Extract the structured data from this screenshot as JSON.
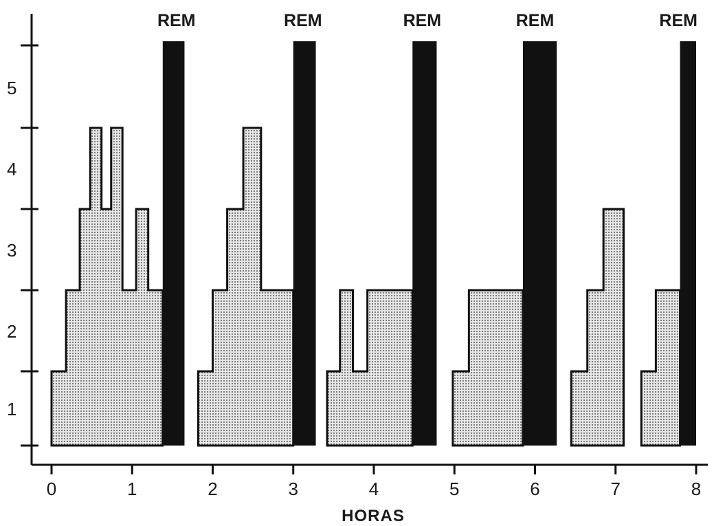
{
  "chart_data": {
    "type": "area",
    "title": "",
    "xlabel": "HORAS",
    "ylabel": "",
    "xlim": [
      0,
      8
    ],
    "ylim": [
      0,
      5
    ],
    "x_ticks": [
      0,
      1,
      2,
      3,
      4,
      5,
      6,
      7,
      8
    ],
    "y_ticks": [
      1,
      2,
      3,
      4,
      5
    ],
    "x_tick_labels": [
      "0",
      "1",
      "2",
      "3",
      "4",
      "5",
      "6",
      "7",
      "8"
    ],
    "y_tick_labels": [
      "1",
      "2",
      "3",
      "4",
      "5"
    ],
    "grid": false,
    "rem_label": "REM",
    "rem_level": 5,
    "cycles": [
      {
        "stages": [
          {
            "x0": 0.0,
            "x1": 0.18,
            "level": 1
          },
          {
            "x0": 0.18,
            "x1": 0.35,
            "level": 2
          },
          {
            "x0": 0.35,
            "x1": 0.48,
            "level": 3
          },
          {
            "x0": 0.48,
            "x1": 0.62,
            "level": 4
          },
          {
            "x0": 0.62,
            "x1": 0.74,
            "level": 3
          },
          {
            "x0": 0.74,
            "x1": 0.88,
            "level": 4
          },
          {
            "x0": 0.88,
            "x1": 1.05,
            "level": 2
          },
          {
            "x0": 1.05,
            "x1": 1.2,
            "level": 3
          },
          {
            "x0": 1.2,
            "x1": 1.38,
            "level": 2
          }
        ],
        "rem": {
          "x0": 1.38,
          "x1": 1.65
        }
      },
      {
        "stages": [
          {
            "x0": 1.82,
            "x1": 2.0,
            "level": 1
          },
          {
            "x0": 2.0,
            "x1": 2.18,
            "level": 2
          },
          {
            "x0": 2.18,
            "x1": 2.38,
            "level": 3
          },
          {
            "x0": 2.38,
            "x1": 2.6,
            "level": 4
          },
          {
            "x0": 2.6,
            "x1": 3.0,
            "level": 2
          }
        ],
        "rem": {
          "x0": 3.0,
          "x1": 3.28
        }
      },
      {
        "stages": [
          {
            "x0": 3.42,
            "x1": 3.58,
            "level": 1
          },
          {
            "x0": 3.58,
            "x1": 3.74,
            "level": 2
          },
          {
            "x0": 3.74,
            "x1": 3.92,
            "level": 1
          },
          {
            "x0": 3.92,
            "x1": 4.48,
            "level": 2
          }
        ],
        "rem": {
          "x0": 4.48,
          "x1": 4.78
        }
      },
      {
        "stages": [
          {
            "x0": 4.98,
            "x1": 5.18,
            "level": 1
          },
          {
            "x0": 5.18,
            "x1": 5.85,
            "level": 2
          }
        ],
        "rem": {
          "x0": 5.85,
          "x1": 6.27
        }
      },
      {
        "stages": [
          {
            "x0": 6.45,
            "x1": 6.65,
            "level": 1
          },
          {
            "x0": 6.65,
            "x1": 6.85,
            "level": 2
          },
          {
            "x0": 6.85,
            "x1": 7.1,
            "level": 3
          }
        ],
        "rem": null
      },
      {
        "stages": [
          {
            "x0": 7.32,
            "x1": 7.5,
            "level": 1
          },
          {
            "x0": 7.5,
            "x1": 7.8,
            "level": 2
          }
        ],
        "rem": {
          "x0": 7.8,
          "x1": 8.0
        }
      }
    ],
    "rem_labels": [
      {
        "text": "REM",
        "x": 1.55
      },
      {
        "text": "REM",
        "x": 3.12
      },
      {
        "text": "REM",
        "x": 4.6
      },
      {
        "text": "REM",
        "x": 6.0
      },
      {
        "text": "REM",
        "x": 7.78
      }
    ],
    "colors": {
      "rem": "#111111",
      "stage_fill_dot": "#333333",
      "stage_fill_bg": "#e6e6e6",
      "axis": "#111111"
    }
  }
}
